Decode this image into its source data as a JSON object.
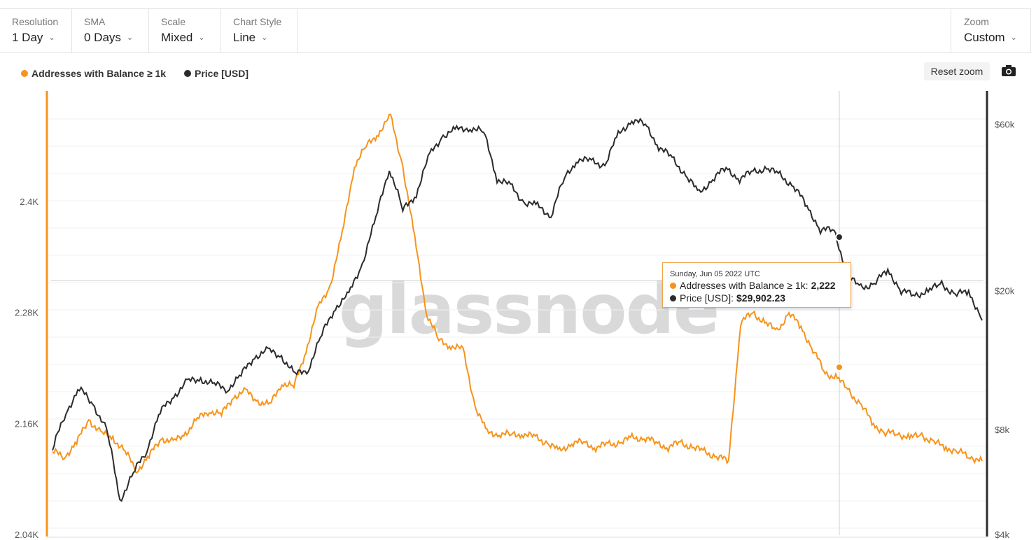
{
  "controls": [
    {
      "label": "Resolution",
      "value": "1 Day"
    },
    {
      "label": "SMA",
      "value": "0 Days"
    },
    {
      "label": "Scale",
      "value": "Mixed"
    },
    {
      "label": "Chart Style",
      "value": "Line"
    }
  ],
  "zoom": {
    "label": "Zoom",
    "value": "Custom"
  },
  "reset_zoom_label": "Reset zoom",
  "watermark": "glassnode",
  "tooltip": {
    "date": "Sunday, Jun 05 2022 UTC",
    "series1_label": "Addresses with Balance ≥ 1k:",
    "series1_value": "2,222",
    "series2_label": "Price [USD]:",
    "series2_value": "$29,902.23"
  },
  "colors": {
    "addresses": "#f7931a",
    "price": "#2b2b2b",
    "accent": "#f0a64a"
  },
  "icons": {
    "chevron": "chevron-down-icon",
    "camera": "camera-icon"
  },
  "chart_data": {
    "type": "line",
    "legend_position": "top-left",
    "left_axis": {
      "ticks": [
        "2.4K",
        "2.28K",
        "2.16K",
        "2.04K"
      ],
      "ylim": [
        2040,
        2520
      ]
    },
    "right_axis": {
      "scale": "log",
      "ticks": [
        "$60k",
        "$20k",
        "$8k",
        "$4k"
      ],
      "ylim": [
        4000,
        75000
      ]
    },
    "series": [
      {
        "name": "Addresses with Balance ≥ 1k",
        "axis": "left",
        "color": "#f7931a",
        "values": [
          2130,
          2125,
          2140,
          2165,
          2150,
          2145,
          2130,
          2110,
          2125,
          2145,
          2140,
          2150,
          2165,
          2175,
          2170,
          2190,
          2195,
          2185,
          2180,
          2205,
          2200,
          2240,
          2285,
          2310,
          2365,
          2440,
          2460,
          2475,
          2492,
          2440,
          2360,
          2280,
          2250,
          2245,
          2240,
          2180,
          2150,
          2150,
          2148,
          2150,
          2145,
          2140,
          2130,
          2140,
          2140,
          2135,
          2138,
          2140,
          2145,
          2145,
          2140,
          2135,
          2140,
          2135,
          2130,
          2125,
          2120,
          2270,
          2280,
          2270,
          2260,
          2280,
          2265,
          2240,
          2215,
          2210,
          2195,
          2180,
          2160,
          2150,
          2150,
          2145,
          2148,
          2140,
          2135,
          2130,
          2125,
          2120
        ]
      },
      {
        "name": "Price [USD]",
        "axis": "right",
        "color": "#2b2b2b",
        "values": [
          7000,
          9000,
          10500,
          9500,
          8000,
          5000,
          6000,
          7000,
          9000,
          10000,
          11000,
          11200,
          10800,
          10500,
          11500,
          13000,
          13500,
          13000,
          11500,
          12000,
          15000,
          18000,
          19500,
          24000,
          32000,
          45000,
          34000,
          38000,
          49000,
          56000,
          58000,
          59000,
          57000,
          42000,
          40000,
          36000,
          35000,
          33000,
          42000,
          48000,
          47000,
          46000,
          56000,
          62000,
          60000,
          52000,
          48000,
          43000,
          38000,
          42000,
          45000,
          42000,
          44000,
          45000,
          43000,
          40000,
          35000,
          30000,
          29902,
          22000,
          20500,
          21000,
          23000,
          20000,
          19500,
          20000,
          21000,
          19500,
          20000,
          16500
        ]
      }
    ],
    "cursor": {
      "date": "Sunday, Jun 05 2022 UTC",
      "addresses": 2222,
      "price": 29902.23
    }
  }
}
